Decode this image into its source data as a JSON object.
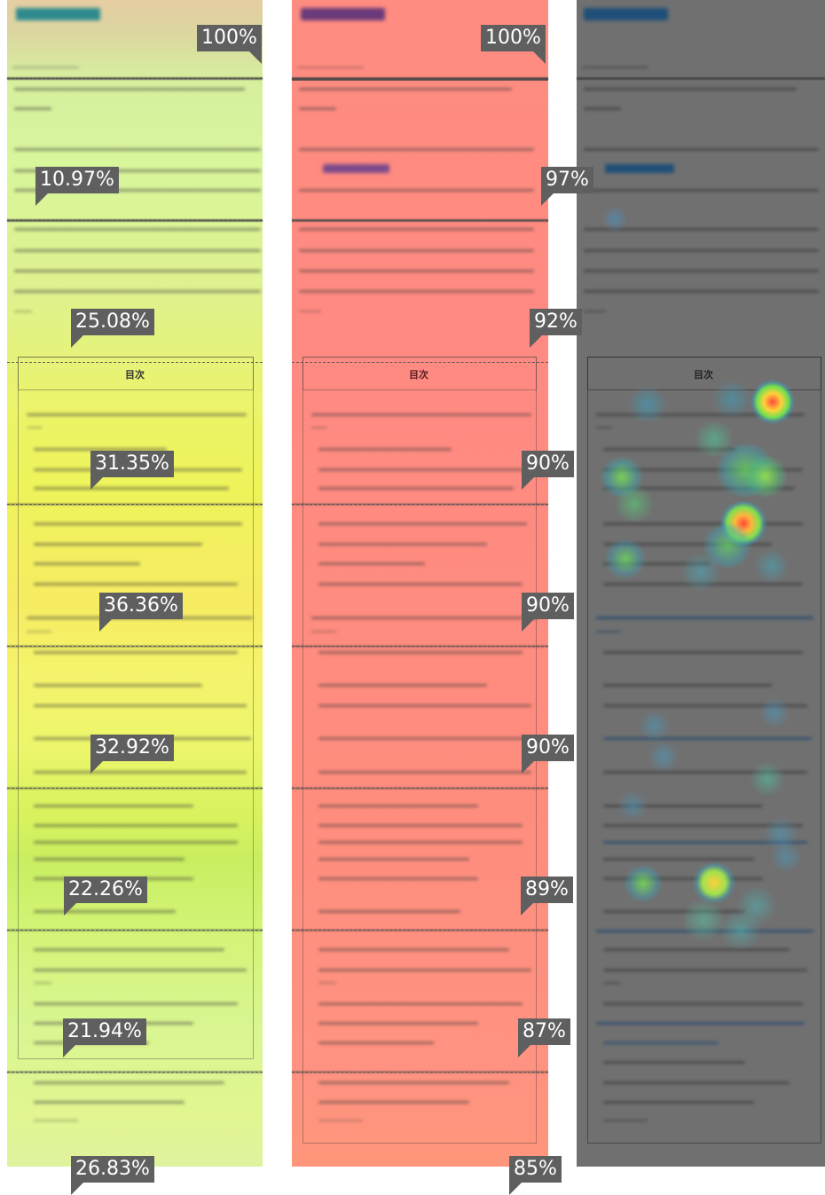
{
  "panels": {
    "attention": {
      "metrics": [
        "100%",
        "10.97%",
        "25.08%",
        "31.35%",
        "36.36%",
        "32.92%",
        "22.26%",
        "21.94%",
        "26.83%"
      ],
      "toc_title": "目次",
      "overlay_color": "#d6ef9e",
      "tag_color": "#2e8a8f"
    },
    "scroll": {
      "metrics": [
        "100%",
        "97%",
        "92%",
        "90%",
        "90%",
        "90%",
        "89%",
        "87%",
        "85%"
      ],
      "toc_title": "目次",
      "overlay_color": "#ff8c80",
      "tag_color": "#6a3a7a"
    },
    "click": {
      "toc_title": "目次",
      "background_color": "#707070",
      "tag_color": "#1e4f78"
    }
  }
}
